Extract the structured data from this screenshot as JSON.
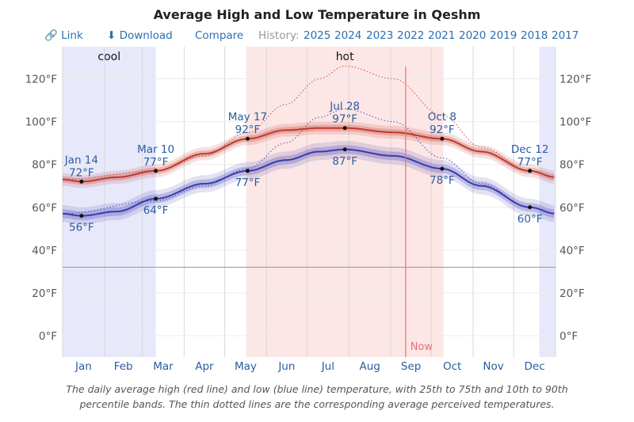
{
  "toolbar": {
    "link_label": "Link",
    "download_label": "Download",
    "compare_label": "Compare",
    "history_label": "History:",
    "years": [
      "2025",
      "2024",
      "2023",
      "2022",
      "2021",
      "2020",
      "2019",
      "2018",
      "2017"
    ]
  },
  "caption": {
    "line1": "The daily average high (red line) and low (blue line) temperature, with 25th to 75th and 10th to 90th",
    "line2": "percentile bands. The thin dotted lines are the corresponding average perceived temperatures."
  },
  "colors": {
    "high": "#c0392b",
    "low": "#3a3ab0",
    "cool_band": "#e8e8fb",
    "hot_band": "#fde6e6",
    "now_line": "#e57373",
    "axis_text": "#555555",
    "label_text": "#2a5d9f"
  },
  "chart_data": {
    "type": "line",
    "title": "Average High and Low Temperature in Qeshm",
    "unit": "°F",
    "ylim": [
      -10,
      135
    ],
    "y_ticks": [
      0,
      20,
      40,
      60,
      80,
      100,
      120
    ],
    "months": [
      "Jan",
      "Feb",
      "Mar",
      "Apr",
      "May",
      "Jun",
      "Jul",
      "Aug",
      "Sep",
      "Oct",
      "Nov",
      "Dec"
    ],
    "seasons": [
      {
        "label": "cool",
        "start_day": 0,
        "end_day": 69
      },
      {
        "label": "hot",
        "start_day": 136,
        "end_day": 282
      },
      {
        "label": "",
        "start_day": 353,
        "end_day": 365
      }
    ],
    "now": {
      "label": "Now",
      "day": 254
    },
    "frost_line_f": 32,
    "series": [
      {
        "name": "Average High",
        "days": [
          0,
          14,
          40,
          69,
          105,
          137,
          165,
          190,
          209,
          245,
          281,
          310,
          346,
          365
        ],
        "values": [
          73,
          72,
          74,
          77,
          85,
          92,
          96,
          97,
          97,
          95,
          92,
          86,
          77,
          74
        ],
        "p25_offset": 1.5,
        "p10_offset": 3
      },
      {
        "name": "Average Low",
        "days": [
          0,
          14,
          40,
          69,
          105,
          137,
          165,
          190,
          209,
          245,
          281,
          310,
          346,
          365
        ],
        "values": [
          57,
          56,
          58,
          64,
          71,
          77,
          82,
          86,
          87,
          84,
          78,
          70,
          60,
          57
        ],
        "p25_offset": 2,
        "p10_offset": 4
      },
      {
        "name": "Perceived High",
        "style": "dotted",
        "days": [
          0,
          69,
          105,
          137,
          165,
          190,
          209,
          245,
          281,
          310,
          346,
          365
        ],
        "values": [
          73,
          77,
          84,
          95,
          108,
          120,
          126,
          120,
          103,
          88,
          77,
          74
        ]
      },
      {
        "name": "Perceived Low",
        "style": "dotted",
        "days": [
          0,
          69,
          105,
          137,
          165,
          190,
          209,
          245,
          281,
          310,
          346,
          365
        ],
        "values": [
          57,
          63,
          70,
          78,
          90,
          102,
          106,
          100,
          83,
          71,
          60,
          57
        ]
      }
    ],
    "annotations": [
      {
        "date": "Jan 14",
        "high": "72°F",
        "low": "56°F",
        "day": 14,
        "high_value": 72,
        "low_value": 56
      },
      {
        "date": "Mar 10",
        "high": "77°F",
        "low": "64°F",
        "day": 69,
        "high_value": 77,
        "low_value": 64
      },
      {
        "date": "May 17",
        "high": "92°F",
        "low": "77°F",
        "day": 137,
        "high_value": 92,
        "low_value": 77
      },
      {
        "date": "Jul 28",
        "high": "97°F",
        "low": "87°F",
        "day": 209,
        "high_value": 97,
        "low_value": 87
      },
      {
        "date": "Oct 8",
        "high": "92°F",
        "low": "78°F",
        "day": 281,
        "high_value": 92,
        "low_value": 78
      },
      {
        "date": "Dec 12",
        "high": "77°F",
        "low": "60°F",
        "day": 346,
        "high_value": 77,
        "low_value": 60
      }
    ]
  }
}
